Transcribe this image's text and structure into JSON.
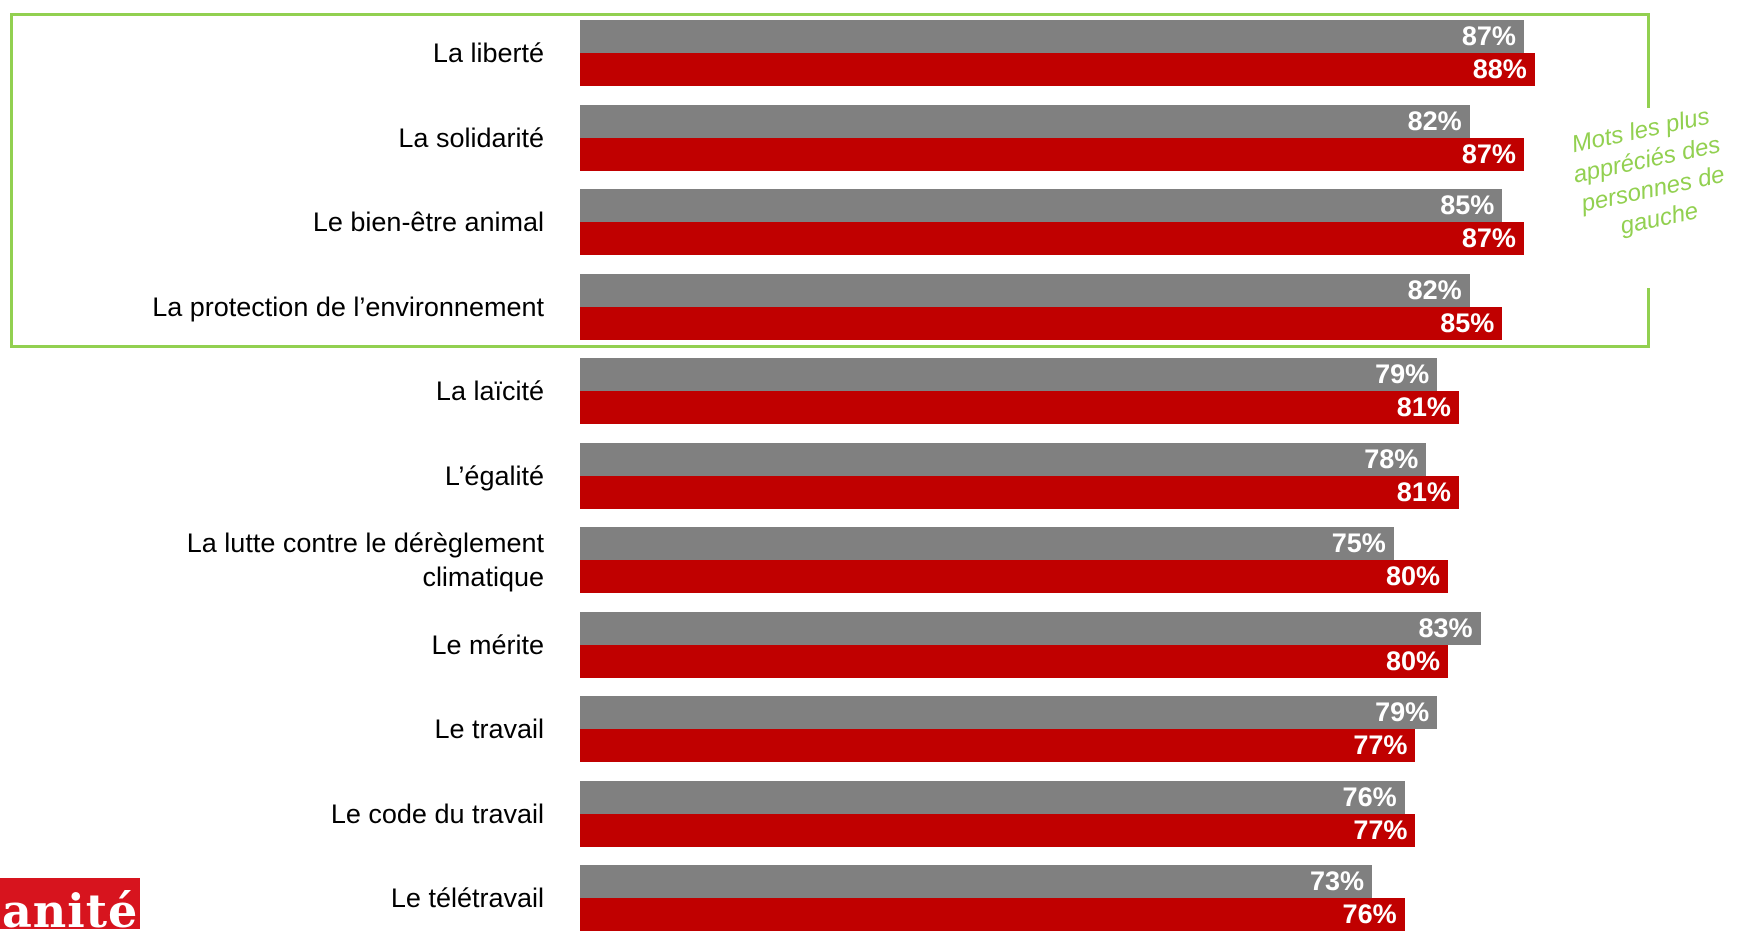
{
  "chart_data": {
    "type": "bar",
    "orientation": "horizontal",
    "categories": [
      "La liberté",
      "La solidarité",
      "Le bien-être animal",
      "La protection de l’environnement",
      "La laïcité",
      "L’égalité",
      "La lutte contre le dérèglement climatique",
      "Le mérite",
      "Le travail",
      "Le code du travail",
      "Le télétravail"
    ],
    "series": [
      {
        "color": "#808080",
        "values": [
          87,
          82,
          85,
          82,
          79,
          78,
          75,
          83,
          79,
          76,
          73
        ]
      },
      {
        "color": "#C00000",
        "values": [
          88,
          87,
          87,
          85,
          81,
          81,
          80,
          80,
          77,
          77,
          76
        ]
      }
    ],
    "value_suffix": "%",
    "xlim": [
      0,
      100
    ],
    "grid": false,
    "legend": "none",
    "annotation": {
      "text": "Mots les plus appréciés des personnes de gauche",
      "color": "#92D050",
      "highlighted_categories": 4
    }
  },
  "logo": {
    "text": "anité",
    "color": "#D7141E"
  }
}
